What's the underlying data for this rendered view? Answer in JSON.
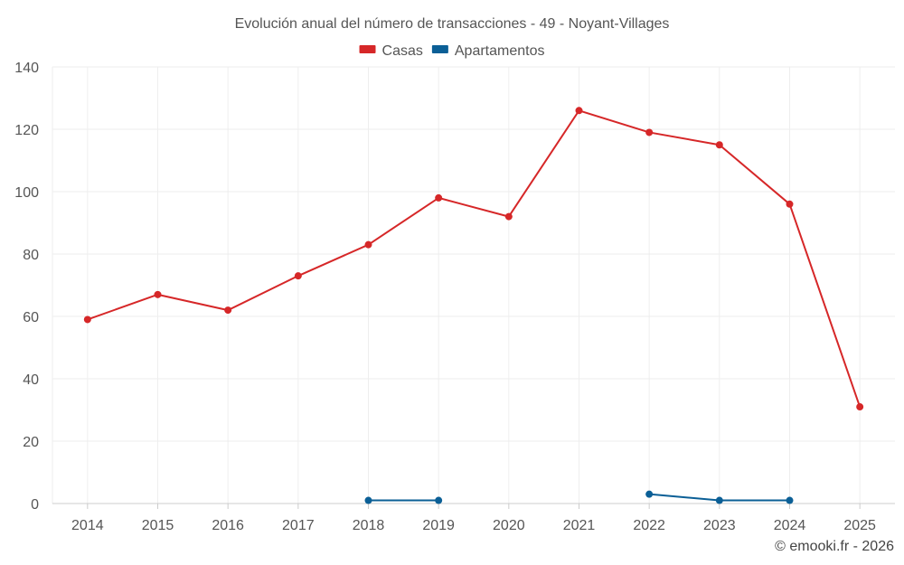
{
  "chart_data": {
    "type": "line",
    "title": "Evolución anual del número de transacciones - 49 - Noyant-Villages",
    "categories": [
      "2014",
      "2015",
      "2016",
      "2017",
      "2018",
      "2019",
      "2020",
      "2021",
      "2022",
      "2023",
      "2024",
      "2025"
    ],
    "ylim": [
      0,
      140
    ],
    "yticks": [
      0,
      20,
      40,
      60,
      80,
      100,
      120,
      140
    ],
    "grid": true,
    "legend_position": "top-center",
    "series": [
      {
        "name": "Casas",
        "color": "#d62728",
        "values": [
          59,
          67,
          62,
          73,
          83,
          98,
          92,
          126,
          119,
          115,
          96,
          31
        ]
      },
      {
        "name": "Apartamentos",
        "color": "#0b5f96",
        "values": [
          null,
          null,
          null,
          null,
          1,
          1,
          null,
          null,
          3,
          1,
          1,
          null
        ]
      }
    ]
  },
  "credit": "© emooki.fr - 2026"
}
